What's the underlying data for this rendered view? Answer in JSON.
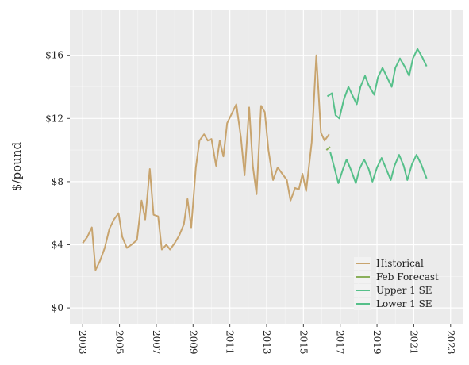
{
  "chart_data": {
    "type": "line",
    "title": "",
    "xlabel": "",
    "ylabel": "$/pound",
    "xlim": [
      2002.3,
      2023.7
    ],
    "ylim": [
      -1.0,
      18.9
    ],
    "yticks": [
      0,
      4,
      8,
      12,
      16
    ],
    "ytick_labels": [
      "$0",
      "$4",
      "$8",
      "$12",
      "$16"
    ],
    "xticks": [
      2003,
      2005,
      2007,
      2009,
      2011,
      2013,
      2015,
      2017,
      2019,
      2021,
      2023
    ],
    "xtick_labels": [
      "2003",
      "2005",
      "2007",
      "2009",
      "2011",
      "2013",
      "2015",
      "2017",
      "2019",
      "2021",
      "2023"
    ],
    "grid": true,
    "legend_position": "bottom-right",
    "series": [
      {
        "name": "Historical",
        "color": "#c8a46e",
        "points": [
          [
            2003.0,
            4.1
          ],
          [
            2003.25,
            4.5
          ],
          [
            2003.5,
            5.1
          ],
          [
            2003.7,
            2.4
          ],
          [
            2003.95,
            3.0
          ],
          [
            2004.2,
            3.8
          ],
          [
            2004.45,
            5.0
          ],
          [
            2004.7,
            5.6
          ],
          [
            2004.95,
            6.0
          ],
          [
            2005.15,
            4.5
          ],
          [
            2005.4,
            3.8
          ],
          [
            2005.65,
            4.0
          ],
          [
            2005.95,
            4.3
          ],
          [
            2006.2,
            6.8
          ],
          [
            2006.4,
            5.6
          ],
          [
            2006.65,
            8.8
          ],
          [
            2006.85,
            5.9
          ],
          [
            2007.1,
            5.8
          ],
          [
            2007.3,
            3.7
          ],
          [
            2007.55,
            4.0
          ],
          [
            2007.75,
            3.7
          ],
          [
            2008.0,
            4.1
          ],
          [
            2008.25,
            4.6
          ],
          [
            2008.5,
            5.3
          ],
          [
            2008.7,
            6.9
          ],
          [
            2008.9,
            5.1
          ],
          [
            2009.15,
            8.9
          ],
          [
            2009.35,
            10.6
          ],
          [
            2009.6,
            11.0
          ],
          [
            2009.8,
            10.6
          ],
          [
            2010.0,
            10.7
          ],
          [
            2010.25,
            9.0
          ],
          [
            2010.45,
            10.6
          ],
          [
            2010.65,
            9.6
          ],
          [
            2010.85,
            11.7
          ],
          [
            2011.1,
            12.3
          ],
          [
            2011.35,
            12.9
          ],
          [
            2011.6,
            10.8
          ],
          [
            2011.8,
            8.4
          ],
          [
            2012.05,
            12.7
          ],
          [
            2012.25,
            9.0
          ],
          [
            2012.45,
            7.2
          ],
          [
            2012.7,
            12.8
          ],
          [
            2012.9,
            12.4
          ],
          [
            2013.1,
            10.0
          ],
          [
            2013.35,
            8.1
          ],
          [
            2013.6,
            8.9
          ],
          [
            2013.85,
            8.5
          ],
          [
            2014.1,
            8.1
          ],
          [
            2014.3,
            6.8
          ],
          [
            2014.55,
            7.6
          ],
          [
            2014.75,
            7.5
          ],
          [
            2014.95,
            8.5
          ],
          [
            2015.15,
            7.4
          ],
          [
            2015.45,
            10.5
          ],
          [
            2015.7,
            16.0
          ],
          [
            2015.95,
            11.1
          ],
          [
            2016.15,
            10.6
          ],
          [
            2016.4,
            11.0
          ]
        ]
      },
      {
        "name": "Feb Forecast",
        "color": "#8bb05b",
        "points": [
          [
            2016.25,
            10.0
          ],
          [
            2016.45,
            10.2
          ]
        ]
      },
      {
        "name": "Upper 1 SE",
        "color": "#56c08a",
        "points": [
          [
            2016.3,
            13.4
          ],
          [
            2016.55,
            13.6
          ],
          [
            2016.75,
            12.2
          ],
          [
            2016.95,
            12.0
          ],
          [
            2017.2,
            13.2
          ],
          [
            2017.45,
            14.0
          ],
          [
            2017.65,
            13.5
          ],
          [
            2017.9,
            12.9
          ],
          [
            2018.1,
            14.0
          ],
          [
            2018.35,
            14.7
          ],
          [
            2018.55,
            14.1
          ],
          [
            2018.85,
            13.5
          ],
          [
            2019.05,
            14.6
          ],
          [
            2019.3,
            15.2
          ],
          [
            2019.55,
            14.6
          ],
          [
            2019.8,
            14.0
          ],
          [
            2020.0,
            15.2
          ],
          [
            2020.25,
            15.8
          ],
          [
            2020.5,
            15.3
          ],
          [
            2020.75,
            14.7
          ],
          [
            2020.95,
            15.8
          ],
          [
            2021.2,
            16.4
          ],
          [
            2021.45,
            15.9
          ],
          [
            2021.7,
            15.3
          ]
        ]
      },
      {
        "name": "Lower 1 SE",
        "color": "#56c08a",
        "points": [
          [
            2016.45,
            9.9
          ],
          [
            2016.7,
            8.8
          ],
          [
            2016.9,
            7.9
          ],
          [
            2017.15,
            8.8
          ],
          [
            2017.35,
            9.4
          ],
          [
            2017.6,
            8.7
          ],
          [
            2017.85,
            7.9
          ],
          [
            2018.05,
            8.8
          ],
          [
            2018.3,
            9.4
          ],
          [
            2018.55,
            8.8
          ],
          [
            2018.75,
            8.0
          ],
          [
            2019.0,
            8.9
          ],
          [
            2019.25,
            9.5
          ],
          [
            2019.5,
            8.8
          ],
          [
            2019.75,
            8.1
          ],
          [
            2019.95,
            9.0
          ],
          [
            2020.2,
            9.7
          ],
          [
            2020.45,
            9.0
          ],
          [
            2020.65,
            8.1
          ],
          [
            2020.9,
            9.1
          ],
          [
            2021.15,
            9.7
          ],
          [
            2021.4,
            9.1
          ],
          [
            2021.7,
            8.2
          ]
        ]
      }
    ]
  }
}
